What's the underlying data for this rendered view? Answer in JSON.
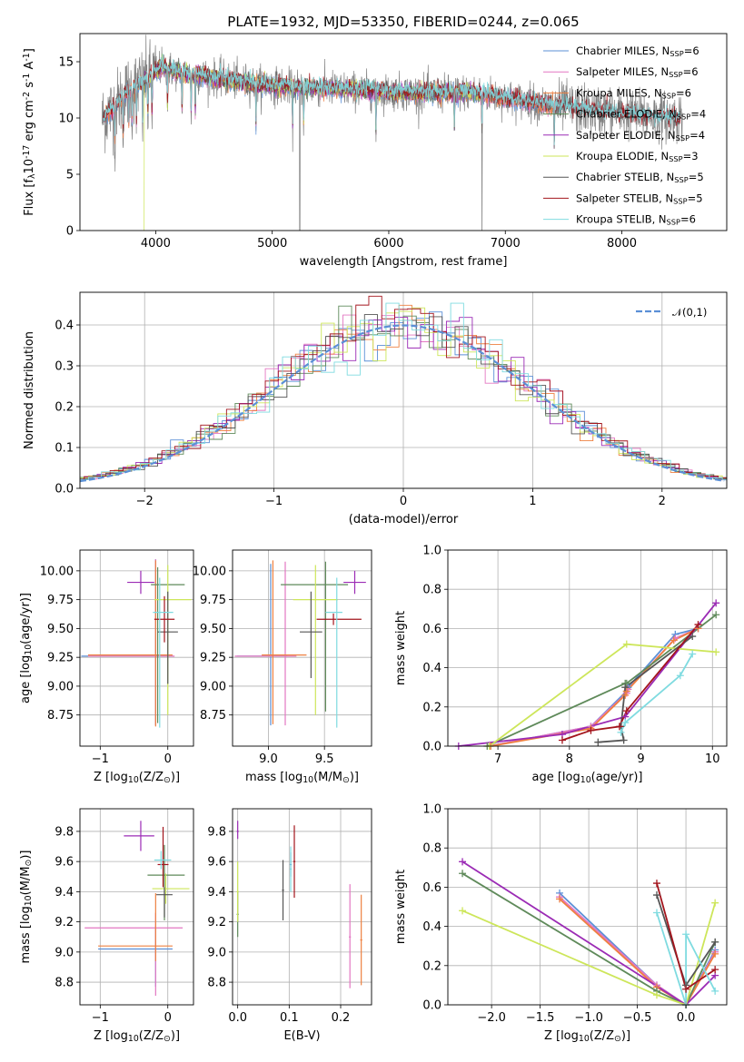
{
  "colors": {
    "chabrier_miles": "#5b8fd6",
    "salpeter_miles": "#e377c2",
    "kroupa_miles": "#ee8040",
    "chabrier_elodie": "#5f8a5a",
    "salpeter_elodie": "#9b2bb5",
    "kroupa_elodie": "#cde65a",
    "chabrier_stelib": "#555555",
    "salpeter_stelib": "#a3141c",
    "kroupa_stelib": "#7fdbe0",
    "data": "#808080",
    "grid": "#b0b0b0",
    "normal": "#5b8fd6"
  },
  "chart_data": [
    {
      "type": "line",
      "title": "PLATE=1932, MJD=53350, FIBERID=0244, z=0.065",
      "xlabel": "wavelength [Angstrom, rest frame]",
      "ylabel": "Flux [f$_\\lambda$10$^{-17}$ erg cm$^{-2}$ s$^{-1}$ A$^{-1}$]",
      "xlim": [
        3350,
        8900
      ],
      "ylim": [
        0,
        17.5
      ],
      "xticks": [
        4000,
        5000,
        6000,
        7000,
        8000
      ],
      "yticks": [
        0,
        5,
        10,
        15
      ],
      "grid": false,
      "legend_position": "top-right",
      "series": [
        {
          "name": "Chabrier MILES, N$_{SSP}$=6",
          "color_key": "chabrier_miles"
        },
        {
          "name": "Salpeter MILES, N$_{SSP}$=6",
          "color_key": "salpeter_miles"
        },
        {
          "name": "Kroupa MILES, N$_{SSP}$=6",
          "color_key": "kroupa_miles"
        },
        {
          "name": "Chabrier ELODIE, N$_{SSP}$=4",
          "color_key": "chabrier_elodie"
        },
        {
          "name": "Salpeter ELODIE, N$_{SSP}$=4",
          "color_key": "salpeter_elodie"
        },
        {
          "name": "Kroupa ELODIE, N$_{SSP}$=3",
          "color_key": "kroupa_elodie"
        },
        {
          "name": "Chabrier STELIB, N$_{SSP}$=5",
          "color_key": "chabrier_stelib"
        },
        {
          "name": "Salpeter STELIB, N$_{SSP}$=5",
          "color_key": "salpeter_stelib"
        },
        {
          "name": "Kroupa STELIB, N$_{SSP}$=6",
          "color_key": "kroupa_stelib"
        }
      ],
      "continuum": {
        "x": [
          3550,
          3650,
          3750,
          3850,
          3950,
          4050,
          4150,
          4300,
          4500,
          4700,
          4900,
          5100,
          5300,
          5500,
          5700,
          5900,
          6100,
          6300,
          6500,
          6700,
          6900,
          7100,
          7300,
          7500,
          7700,
          7900,
          8100,
          8300,
          8500
        ],
        "y": [
          10.0,
          11.0,
          12.3,
          13.0,
          13.6,
          14.6,
          14.2,
          13.9,
          13.6,
          13.3,
          13.0,
          12.8,
          12.7,
          12.6,
          12.5,
          12.4,
          12.3,
          12.2,
          12.2,
          12.3,
          12.0,
          11.6,
          11.3,
          11.0,
          10.7,
          10.5,
          10.3,
          10.1,
          10.0
        ]
      },
      "absorption_lines_x": [
        3650,
        3720,
        3770,
        3798,
        3835,
        3889,
        3933,
        3968,
        4101,
        4226,
        4304,
        4340,
        4861,
        5175,
        5270,
        5890,
        6563,
        6800,
        7420
      ]
    },
    {
      "type": "bar",
      "xlabel": "(data-model)/error",
      "ylabel": "Normed distribution",
      "xlim": [
        -2.5,
        2.5
      ],
      "ylim": [
        0,
        0.48
      ],
      "xticks": [
        -2,
        -1,
        0,
        1,
        2
      ],
      "yticks": [
        0.0,
        0.1,
        0.2,
        0.3,
        0.4
      ],
      "grid": true,
      "legend_position": "top-right",
      "legend": "$\\mathcal{N}(0,1)$",
      "bin_width": 0.1
    },
    {
      "type": "scatter",
      "xlabel": "Z [log$_{10}$(Z/Z$_\\odot$)]",
      "ylabel": "age  [log$_{10}$(age/yr)]",
      "xlim": [
        -1.3,
        0.38
      ],
      "ylim": [
        8.48,
        10.18
      ],
      "xticks": [
        -1,
        0
      ],
      "yticks": [
        8.75,
        9.0,
        9.25,
        9.5,
        9.75,
        10.0
      ],
      "grid": true,
      "points": [
        {
          "color_key": "chabrier_miles",
          "x": -0.18,
          "xerr": [
            1.1,
            0.25
          ],
          "y": 9.26,
          "yerr": [
            0.6,
            0.84
          ]
        },
        {
          "color_key": "salpeter_miles",
          "x": -0.18,
          "xerr": [
            1.0,
            0.28
          ],
          "y": 9.26,
          "yerr": [
            0.6,
            0.84
          ]
        },
        {
          "color_key": "kroupa_miles",
          "x": -0.18,
          "xerr": [
            1.0,
            0.25
          ],
          "y": 9.27,
          "yerr": [
            0.62,
            0.82
          ]
        },
        {
          "color_key": "chabrier_elodie",
          "x": -0.15,
          "xerr": [
            0.1,
            0.4
          ],
          "y": 9.88,
          "yerr": [
            1.2,
            0.15
          ]
        },
        {
          "color_key": "salpeter_elodie",
          "x": -0.4,
          "xerr": [
            0.2,
            0.2
          ],
          "y": 9.9,
          "yerr": [
            0.1,
            0.1
          ]
        },
        {
          "color_key": "kroupa_elodie",
          "x": 0.0,
          "xerr": [
            0.2,
            0.35
          ],
          "y": 9.75,
          "yerr": [
            1.0,
            0.3
          ]
        },
        {
          "color_key": "chabrier_stelib",
          "x": 0.0,
          "xerr": [
            0.15,
            0.15
          ],
          "y": 9.47,
          "yerr": [
            0.45,
            0.35
          ]
        },
        {
          "color_key": "salpeter_stelib",
          "x": -0.05,
          "xerr": [
            0.15,
            0.15
          ],
          "y": 9.58,
          "yerr": [
            0.2,
            0.2
          ]
        },
        {
          "color_key": "kroupa_stelib",
          "x": -0.12,
          "xerr": [
            0.1,
            0.2
          ],
          "y": 9.64,
          "yerr": [
            1.0,
            0.3
          ]
        }
      ]
    },
    {
      "type": "scatter",
      "xlabel": "mass [log$_{10}$(M/M$_\\odot$)]",
      "ylabel": "",
      "xlim": [
        8.68,
        9.92
      ],
      "ylim": [
        8.48,
        10.18
      ],
      "xticks": [
        9.0,
        9.5
      ],
      "yticks": [
        8.75,
        9.0,
        9.25,
        9.5,
        9.75,
        10.0
      ],
      "grid": true,
      "points": [
        {
          "color_key": "chabrier_miles",
          "x": 9.02,
          "xerr": [
            0.3,
            0.15
          ],
          "y": 9.26,
          "yerr": [
            0.6,
            0.8
          ]
        },
        {
          "color_key": "salpeter_miles",
          "x": 9.15,
          "xerr": [
            0.45,
            0.1
          ],
          "y": 9.26,
          "yerr": [
            0.6,
            0.82
          ]
        },
        {
          "color_key": "kroupa_miles",
          "x": 9.04,
          "xerr": [
            0.1,
            0.3
          ],
          "y": 9.27,
          "yerr": [
            0.6,
            0.82
          ]
        },
        {
          "color_key": "chabrier_elodie",
          "x": 9.51,
          "xerr": [
            0.4,
            0.2
          ],
          "y": 9.88,
          "yerr": [
            1.1,
            0.2
          ]
        },
        {
          "color_key": "salpeter_elodie",
          "x": 9.77,
          "xerr": [
            0.1,
            0.1
          ],
          "y": 9.9,
          "yerr": [
            0.1,
            0.1
          ]
        },
        {
          "color_key": "kroupa_elodie",
          "x": 9.42,
          "xerr": [
            0.2,
            0.2
          ],
          "y": 9.75,
          "yerr": [
            1.0,
            0.3
          ]
        },
        {
          "color_key": "chabrier_stelib",
          "x": 9.38,
          "xerr": [
            0.1,
            0.1
          ],
          "y": 9.47,
          "yerr": [
            0.4,
            0.35
          ]
        },
        {
          "color_key": "salpeter_stelib",
          "x": 9.58,
          "xerr": [
            0.15,
            0.25
          ],
          "y": 9.58,
          "yerr": [
            0.05,
            0.05
          ]
        },
        {
          "color_key": "kroupa_stelib",
          "x": 9.61,
          "xerr": [
            0.1,
            0.05
          ],
          "y": 9.64,
          "yerr": [
            1.0,
            0.3
          ]
        }
      ]
    },
    {
      "type": "line",
      "xlabel": "age  [log$_{10}$(age/yr)]",
      "ylabel": "mass weight",
      "xlim": [
        6.3,
        10.2
      ],
      "ylim": [
        0,
        1.0
      ],
      "xticks": [
        7,
        8,
        9,
        10
      ],
      "yticks": [
        0.0,
        0.2,
        0.4,
        0.6,
        0.8,
        1.0
      ],
      "grid": true,
      "series": [
        {
          "color_key": "chabrier_miles",
          "x": [
            6.88,
            8.3,
            8.8,
            8.82,
            9.48,
            9.8
          ],
          "y": [
            0.0,
            0.1,
            0.28,
            0.3,
            0.57,
            0.6
          ]
        },
        {
          "color_key": "salpeter_miles",
          "x": [
            6.88,
            8.3,
            8.8,
            8.82,
            9.48,
            9.8
          ],
          "y": [
            0.0,
            0.1,
            0.27,
            0.29,
            0.55,
            0.6
          ]
        },
        {
          "color_key": "kroupa_miles",
          "x": [
            6.9,
            8.3,
            8.78,
            8.8,
            9.46,
            9.8
          ],
          "y": [
            0.0,
            0.09,
            0.26,
            0.28,
            0.54,
            0.6
          ]
        },
        {
          "color_key": "chabrier_elodie",
          "x": [
            6.85,
            8.78,
            8.8,
            10.05
          ],
          "y": [
            0.0,
            0.32,
            0.32,
            0.67
          ]
        },
        {
          "color_key": "salpeter_elodie",
          "x": [
            6.45,
            7.9,
            8.78,
            10.05
          ],
          "y": [
            0.0,
            0.06,
            0.15,
            0.73
          ]
        },
        {
          "color_key": "kroupa_elodie",
          "x": [
            6.88,
            8.8,
            10.05
          ],
          "y": [
            0.0,
            0.52,
            0.48
          ]
        },
        {
          "color_key": "chabrier_stelib",
          "x": [
            8.4,
            8.76,
            8.72,
            8.78,
            9.72
          ],
          "y": [
            0.02,
            0.03,
            0.1,
            0.3,
            0.56
          ]
        },
        {
          "color_key": "salpeter_stelib",
          "x": [
            7.9,
            8.3,
            8.7,
            8.8,
            9.8
          ],
          "y": [
            0.03,
            0.08,
            0.1,
            0.18,
            0.62
          ]
        },
        {
          "color_key": "kroupa_stelib",
          "x": [
            8.72,
            8.78,
            9.55,
            9.72
          ],
          "y": [
            0.07,
            0.12,
            0.36,
            0.47
          ]
        }
      ]
    },
    {
      "type": "scatter",
      "xlabel": "Z [log$_{10}$(Z/Z$_\\odot$)]",
      "ylabel": "mass [log$_{10}$(M/M$_\\odot$)]",
      "xlim": [
        -1.3,
        0.38
      ],
      "ylim": [
        8.65,
        9.95
      ],
      "xticks": [
        -1,
        0
      ],
      "yticks": [
        8.8,
        9.0,
        9.2,
        9.4,
        9.6,
        9.8
      ],
      "grid": true,
      "points": [
        {
          "color_key": "chabrier_miles",
          "x": -0.18,
          "xerr": [
            0.85,
            0.25
          ],
          "y": 9.02,
          "yerr": [
            0.25,
            0.15
          ]
        },
        {
          "color_key": "salpeter_miles",
          "x": -0.18,
          "xerr": [
            1.05,
            0.4
          ],
          "y": 9.16,
          "yerr": [
            0.45,
            0.1
          ]
        },
        {
          "color_key": "kroupa_miles",
          "x": -0.18,
          "xerr": [
            0.85,
            0.25
          ],
          "y": 9.04,
          "yerr": [
            0.1,
            0.35
          ]
        },
        {
          "color_key": "chabrier_elodie",
          "x": -0.05,
          "xerr": [
            0.25,
            0.3
          ],
          "y": 9.51,
          "yerr": [
            0.3,
            0.2
          ]
        },
        {
          "color_key": "salpeter_elodie",
          "x": -0.4,
          "xerr": [
            0.25,
            0.2
          ],
          "y": 9.77,
          "yerr": [
            0.1,
            0.1
          ]
        },
        {
          "color_key": "kroupa_elodie",
          "x": -0.03,
          "xerr": [
            0.2,
            0.35
          ],
          "y": 9.42,
          "yerr": [
            0.1,
            0.1
          ]
        },
        {
          "color_key": "chabrier_stelib",
          "x": -0.05,
          "xerr": [
            0.12,
            0.12
          ],
          "y": 9.38,
          "yerr": [
            0.15,
            0.05
          ]
        },
        {
          "color_key": "salpeter_stelib",
          "x": -0.07,
          "xerr": [
            0.08,
            0.08
          ],
          "y": 9.58,
          "yerr": [
            0.15,
            0.25
          ]
        },
        {
          "color_key": "kroupa_stelib",
          "x": -0.1,
          "xerr": [
            0.1,
            0.15
          ],
          "y": 9.61,
          "yerr": [
            0.06,
            0.06
          ]
        }
      ]
    },
    {
      "type": "scatter",
      "xlabel": "E(B-V)",
      "ylabel": "",
      "xlim": [
        -0.01,
        0.26
      ],
      "ylim": [
        8.65,
        9.95
      ],
      "xticks": [
        0.0,
        0.1,
        0.2
      ],
      "yticks": [
        8.8,
        9.0,
        9.2,
        9.4,
        9.6,
        9.8
      ],
      "grid": true,
      "points": [
        {
          "color_key": "chabrier_miles",
          "x": 0.103,
          "xerr": [
            0.002,
            0.002
          ],
          "y": 9.58,
          "yerr": [
            0.08,
            0.08
          ]
        },
        {
          "color_key": "salpeter_miles",
          "x": 0.218,
          "xerr": [
            0.002,
            0.002
          ],
          "y": 9.1,
          "yerr": [
            0.34,
            0.35
          ]
        },
        {
          "color_key": "kroupa_miles",
          "x": 0.24,
          "xerr": [
            0.002,
            0.002
          ],
          "y": 9.08,
          "yerr": [
            0.3,
            0.3
          ]
        },
        {
          "color_key": "chabrier_elodie",
          "x": 0.0,
          "xerr": [
            0.002,
            0.002
          ],
          "y": 9.25,
          "yerr": [
            0.15,
            0.15
          ]
        },
        {
          "color_key": "salpeter_elodie",
          "x": 0.0,
          "xerr": [
            0.002,
            0.002
          ],
          "y": 9.8,
          "yerr": [
            0.05,
            0.07
          ]
        },
        {
          "color_key": "kroupa_elodie",
          "x": 0.0,
          "xerr": [
            0.002,
            0.002
          ],
          "y": 9.4,
          "yerr": [
            0.2,
            0.2
          ]
        },
        {
          "color_key": "chabrier_stelib",
          "x": 0.088,
          "xerr": [
            0.002,
            0.002
          ],
          "y": 9.41,
          "yerr": [
            0.2,
            0.2
          ]
        },
        {
          "color_key": "salpeter_stelib",
          "x": 0.11,
          "xerr": [
            0.002,
            0.002
          ],
          "y": 9.6,
          "yerr": [
            0.24,
            0.24
          ]
        },
        {
          "color_key": "kroupa_stelib",
          "x": 0.103,
          "xerr": [
            0.002,
            0.002
          ],
          "y": 9.55,
          "yerr": [
            0.15,
            0.15
          ]
        }
      ]
    },
    {
      "type": "line",
      "xlabel": "Z [log$_{10}$(Z/Z$_\\odot$)]",
      "ylabel": "mass weight",
      "xlim": [
        -2.45,
        0.42
      ],
      "ylim": [
        0,
        1.0
      ],
      "xticks": [
        -2.0,
        -1.5,
        -1.0,
        -0.5,
        0.0
      ],
      "yticks": [
        0.0,
        0.2,
        0.4,
        0.6,
        0.8,
        1.0
      ],
      "grid": true,
      "series": [
        {
          "color_key": "chabrier_miles",
          "x": [
            -1.3,
            -0.3,
            0.0,
            0.3
          ],
          "y": [
            0.57,
            0.1,
            0.0,
            0.28
          ]
        },
        {
          "color_key": "salpeter_miles",
          "x": [
            -1.3,
            -0.3,
            0.0,
            0.3
          ],
          "y": [
            0.55,
            0.1,
            0.0,
            0.27
          ]
        },
        {
          "color_key": "kroupa_miles",
          "x": [
            -1.3,
            -0.3,
            0.0,
            0.3
          ],
          "y": [
            0.54,
            0.09,
            0.0,
            0.26
          ]
        },
        {
          "color_key": "chabrier_elodie",
          "x": [
            -2.3,
            -0.3,
            0.0,
            0.3
          ],
          "y": [
            0.67,
            0.07,
            0.0,
            0.32
          ]
        },
        {
          "color_key": "salpeter_elodie",
          "x": [
            -2.3,
            0.0,
            0.3
          ],
          "y": [
            0.73,
            0.0,
            0.15
          ]
        },
        {
          "color_key": "kroupa_elodie",
          "x": [
            -2.3,
            -0.3,
            0.0,
            0.3
          ],
          "y": [
            0.48,
            0.05,
            0.0,
            0.52
          ]
        },
        {
          "color_key": "chabrier_stelib",
          "x": [
            -0.3,
            0.0,
            0.3
          ],
          "y": [
            0.56,
            0.1,
            0.32
          ]
        },
        {
          "color_key": "salpeter_stelib",
          "x": [
            -0.3,
            0.0,
            0.3
          ],
          "y": [
            0.62,
            0.08,
            0.18
          ]
        },
        {
          "color_key": "kroupa_stelib",
          "x": [
            -0.3,
            0.0,
            0.0,
            0.3
          ],
          "y": [
            0.47,
            0.0,
            0.36,
            0.07
          ]
        }
      ]
    }
  ]
}
